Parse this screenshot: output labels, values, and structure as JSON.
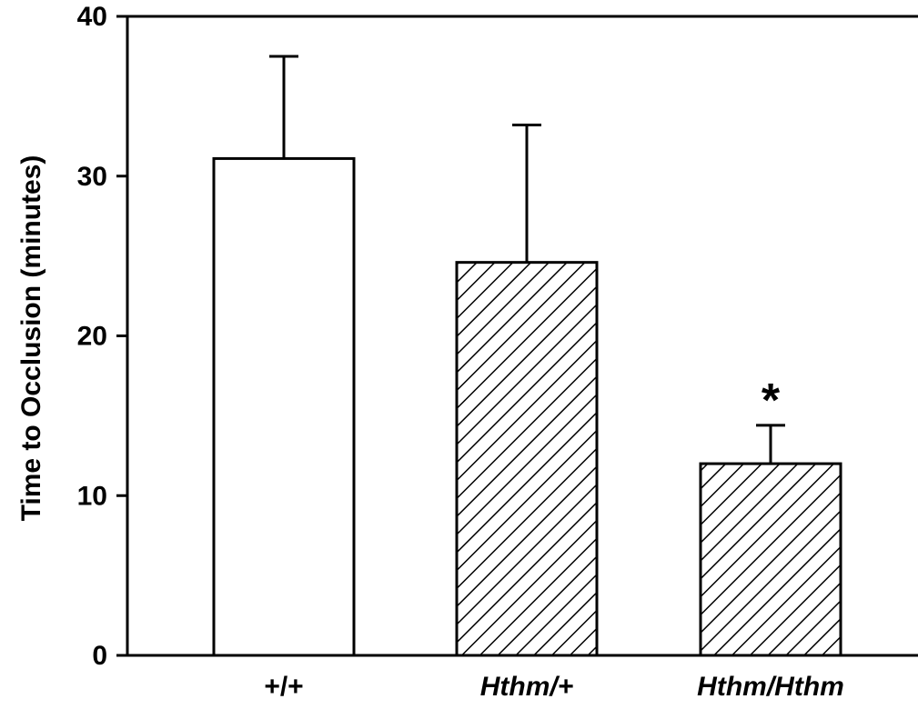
{
  "chart_data": {
    "type": "bar",
    "title": "",
    "xlabel": "",
    "ylabel": "Time to Occlusion (minutes)",
    "ylim": [
      0,
      40
    ],
    "yticks": [
      "0",
      "10",
      "20",
      "30",
      "40"
    ],
    "grid": false,
    "categories": [
      "+/+",
      "Hthm/+",
      "Hthm/Hthm"
    ],
    "values": [
      31.1,
      24.6,
      12.0
    ],
    "errors": [
      6.4,
      8.6,
      2.4
    ],
    "fills": [
      "solid",
      "hatched",
      "hatched"
    ],
    "annotations": [
      {
        "category": "Hthm/Hthm",
        "text": "*"
      }
    ],
    "colors": {
      "axis": "#000000",
      "bar_fill": "#ffffff",
      "bar_edge": "#000000"
    }
  }
}
